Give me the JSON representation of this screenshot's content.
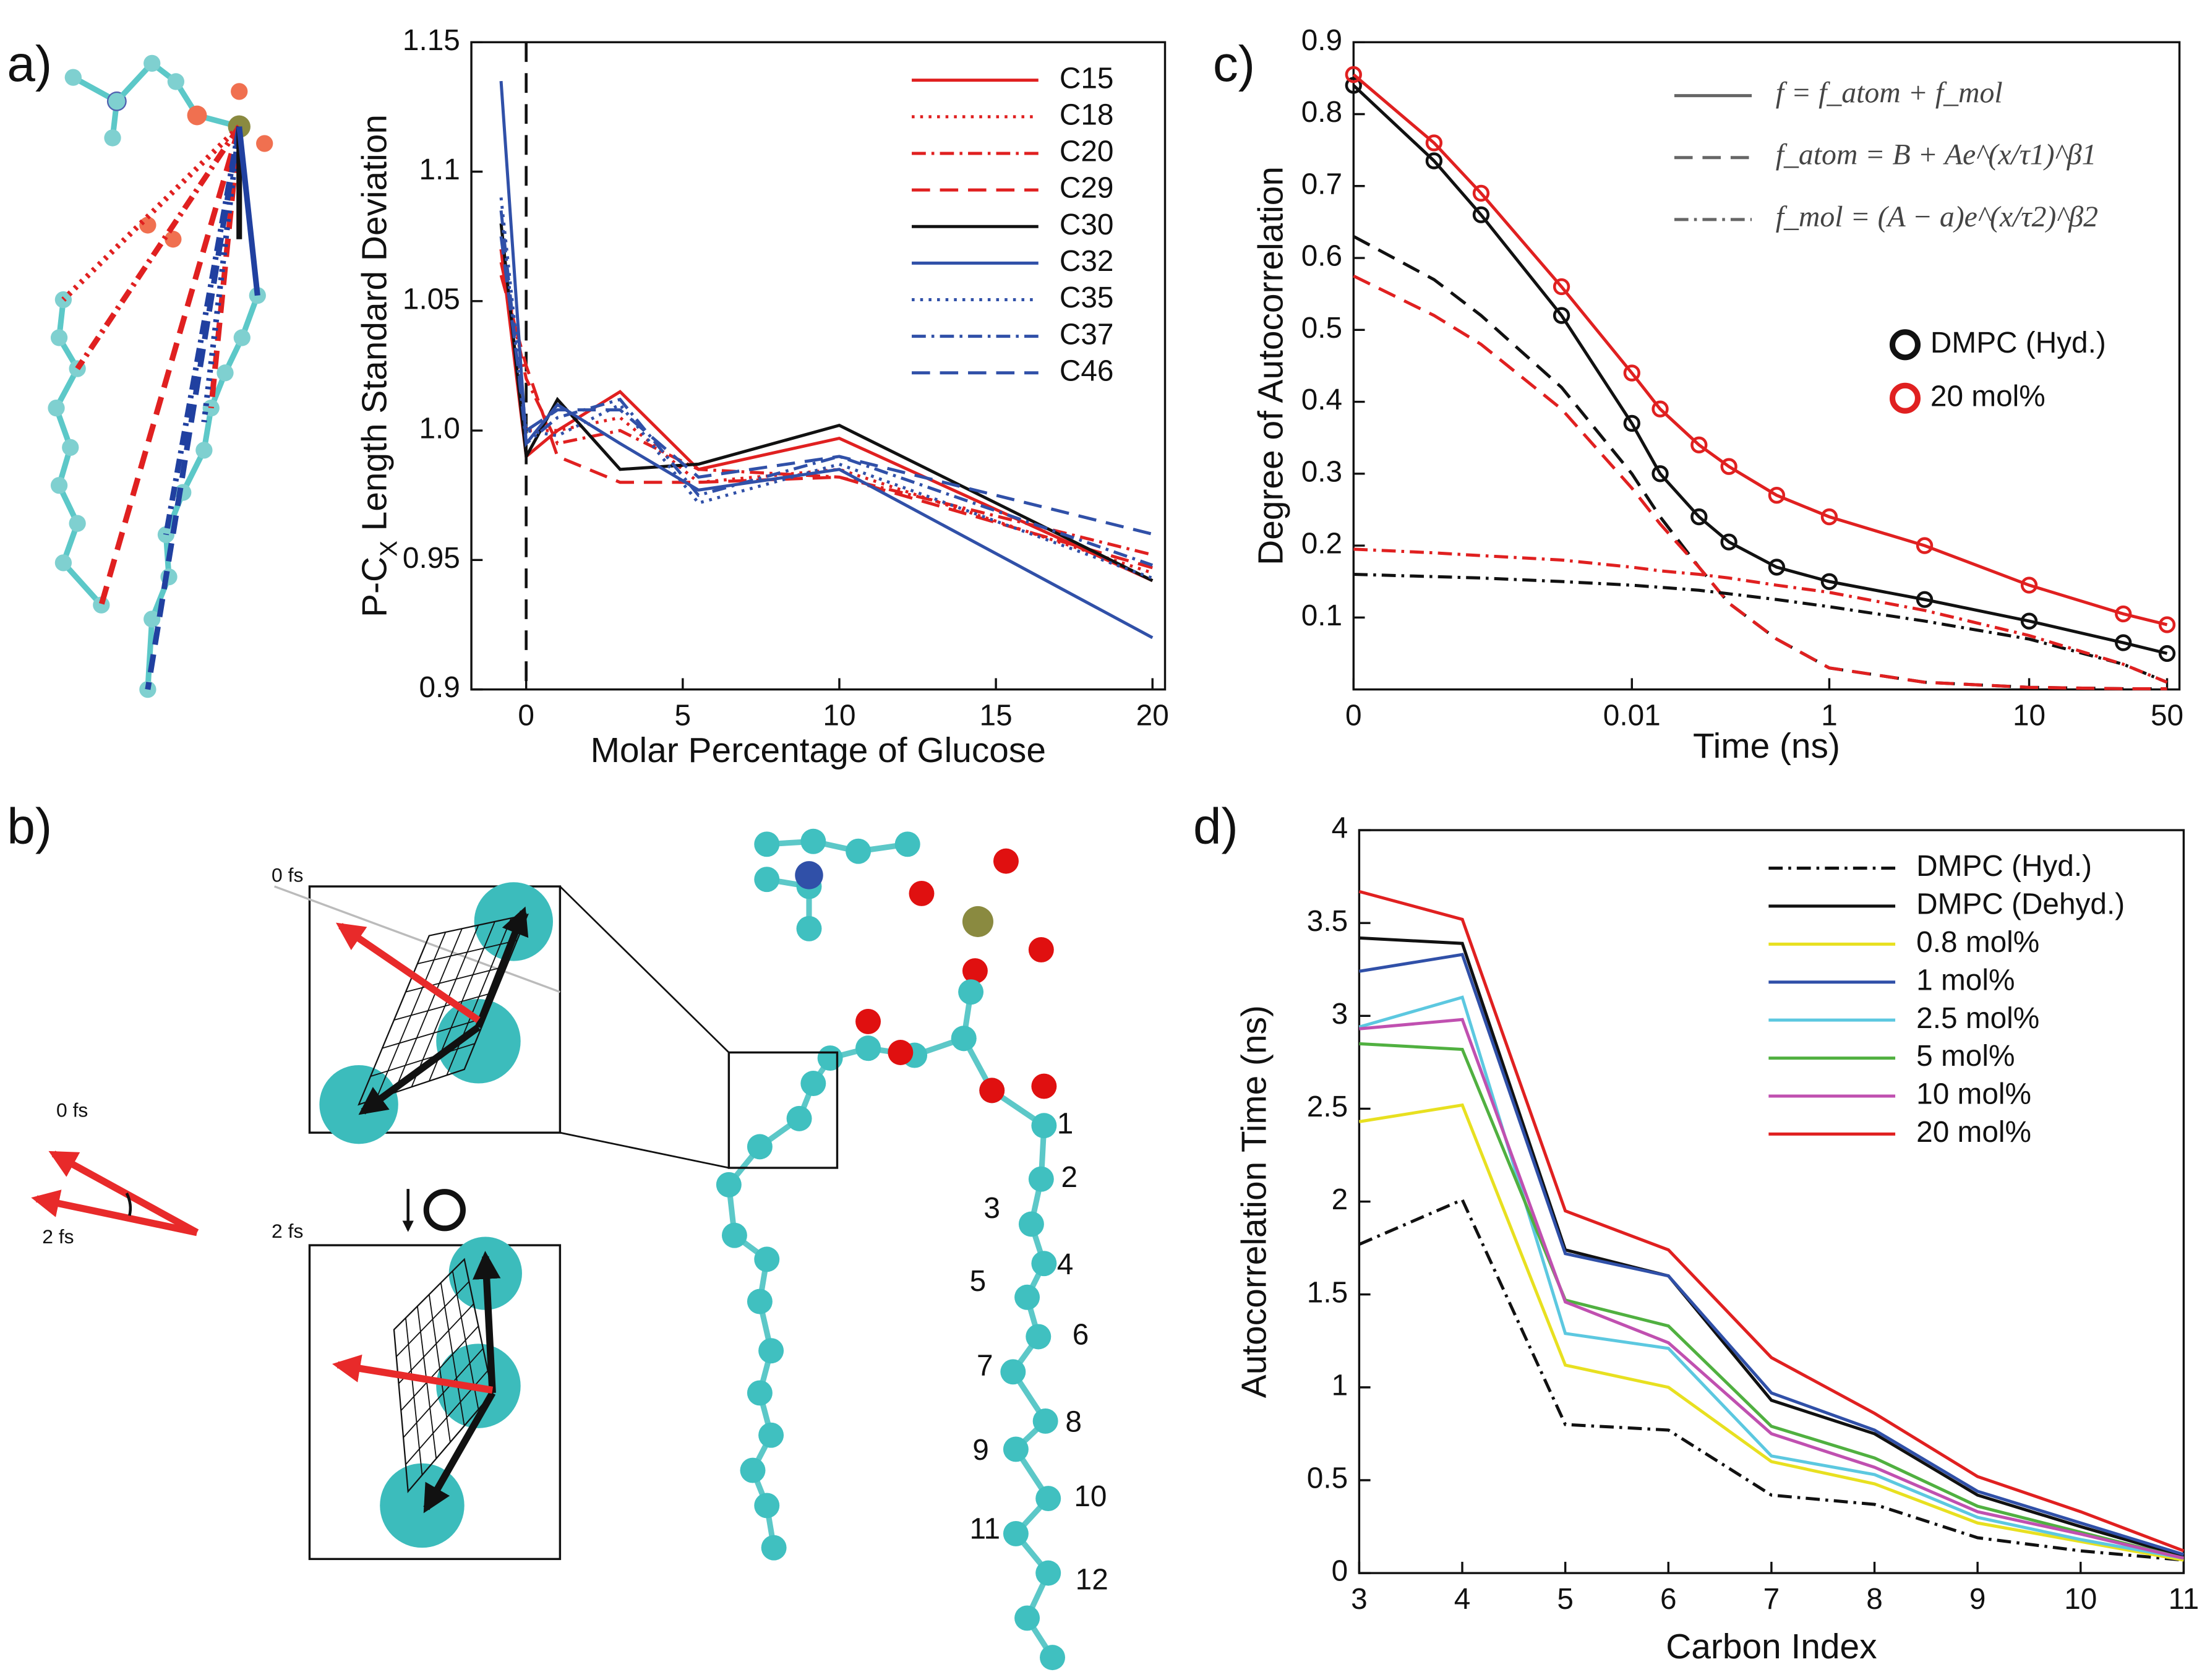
{
  "chart_data": [
    {
      "type": "line",
      "panel": "a",
      "y_label": [
        "P-C",
        "X",
        " Length Standard Deviation"
      ],
      "x_label": "Molar Percentage of Glucose",
      "x": [
        -0.8,
        0,
        1,
        3,
        5.5,
        10,
        20
      ],
      "xlim": [
        -1.75,
        20.4
      ],
      "xticks": [
        0,
        5,
        10,
        15,
        20
      ],
      "ylim": [
        0.9,
        1.15
      ],
      "yticks": [
        0.9,
        0.95,
        {
          "value": 1,
          "label": "1.0"
        },
        1.05,
        1.1,
        1.15
      ],
      "vline": 0,
      "legend": "upper right",
      "series": [
        {
          "name": "C15",
          "color": "#e02020",
          "dash": "solid",
          "values": [
            1.07,
            0.99,
            1.0,
            1.015,
            0.985,
            0.997,
            0.942
          ]
        },
        {
          "name": "C18",
          "color": "#e02020",
          "dash": "dotted",
          "values": [
            1.07,
            1.0,
            1.0,
            1.005,
            0.98,
            0.985,
            0.945
          ]
        },
        {
          "name": "C20",
          "color": "#e02020",
          "dash": "dashdot",
          "values": [
            1.065,
            1.02,
            0.995,
            1.0,
            0.985,
            0.982,
            0.952
          ]
        },
        {
          "name": "C29",
          "color": "#e02020",
          "dash": "dashed",
          "values": [
            1.06,
            1.025,
            0.99,
            0.98,
            0.98,
            0.982,
            0.947
          ]
        },
        {
          "name": "C30",
          "color": "#111111",
          "dash": "solid",
          "values": [
            1.08,
            0.99,
            1.012,
            0.985,
            0.987,
            1.002,
            0.942
          ]
        },
        {
          "name": "C32",
          "color": "#3050a8",
          "dash": "solid",
          "values": [
            1.135,
            0.995,
            1.01,
            0.995,
            0.977,
            0.985,
            0.92
          ]
        },
        {
          "name": "C35",
          "color": "#3050a8",
          "dash": "dotted",
          "values": [
            1.09,
            1.0,
            0.998,
            1.01,
            0.972,
            0.987,
            0.943
          ]
        },
        {
          "name": "C37",
          "color": "#3050a8",
          "dash": "dashdot",
          "values": [
            1.085,
            0.995,
            1.005,
            1.012,
            0.975,
            0.99,
            0.948
          ]
        },
        {
          "name": "C46",
          "color": "#3050a8",
          "dash": "dashed",
          "values": [
            1.075,
            1.0,
            1.008,
            1.008,
            0.982,
            0.99,
            0.96
          ]
        }
      ]
    },
    {
      "type": "line",
      "panel": "c",
      "y_label": [
        "Degree of Autocorrelation"
      ],
      "x_label": "Time (ns)",
      "xscale": "log",
      "x": [
        0,
        0.001,
        0.002,
        0.005,
        0.01,
        0.02,
        0.05,
        0.1,
        0.3,
        1,
        3,
        10,
        30,
        50
      ],
      "xlim": [
        0,
        55
      ],
      "xticks": [
        0,
        0.01,
        1,
        10,
        50
      ],
      "ylim": [
        0,
        0.9
      ],
      "yticks": [
        0.1,
        0.2,
        0.3,
        0.4,
        0.5,
        0.6,
        0.7,
        0.8,
        0.9
      ],
      "legend": "center right",
      "legend_color": "#666666",
      "line_legend": [
        {
          "label": "f = f_atom + f_mol",
          "dash": "solid"
        },
        {
          "label": "f_atom = B + Ae^(x/τ1)^β1",
          "dash": "dashed"
        },
        {
          "label": "f_mol = (A − a)e^(x/τ2)^β2",
          "dash": "dashdot"
        }
      ],
      "series": [
        {
          "name": "DMPC (Hyd.)",
          "color": "#111111",
          "marker": "circle",
          "dash": "solid",
          "values": [
            0.84,
            0.735,
            0.66,
            0.52,
            0.37,
            0.3,
            0.24,
            0.205,
            0.17,
            0.15,
            0.125,
            0.095,
            0.065,
            0.05
          ]
        },
        {
          "name": "20 mol%",
          "color": "#e02020",
          "marker": "circle",
          "dash": "solid",
          "values": [
            0.855,
            0.76,
            0.69,
            0.56,
            0.44,
            0.39,
            0.34,
            0.31,
            0.27,
            0.24,
            0.2,
            0.145,
            0.105,
            0.09
          ]
        }
      ],
      "fits": [
        {
          "color": "#111111",
          "dash": "dashed",
          "values": [
            0.63,
            0.57,
            0.52,
            0.42,
            0.3,
            0.24,
            0.17,
            0.12,
            0.07,
            0.03,
            0.01,
            0.003,
            0.001,
            0.001
          ]
        },
        {
          "color": "#e02020",
          "dash": "dashed",
          "values": [
            0.575,
            0.52,
            0.48,
            0.39,
            0.28,
            0.23,
            0.17,
            0.12,
            0.07,
            0.03,
            0.01,
            0.003,
            0.001,
            0.001
          ]
        },
        {
          "color": "#111111",
          "dash": "dashdot",
          "values": [
            0.16,
            0.157,
            0.155,
            0.15,
            0.145,
            0.142,
            0.138,
            0.133,
            0.125,
            0.115,
            0.095,
            0.07,
            0.035,
            0.01
          ]
        },
        {
          "color": "#e02020",
          "dash": "dashdot",
          "values": [
            0.195,
            0.19,
            0.186,
            0.18,
            0.17,
            0.165,
            0.16,
            0.155,
            0.145,
            0.135,
            0.11,
            0.075,
            0.035,
            0.01
          ]
        }
      ]
    },
    {
      "type": "line",
      "panel": "d",
      "y_label": [
        "Autocorrelation Time (ns)"
      ],
      "x_label": "Carbon Index",
      "x": [
        3,
        4,
        5,
        6,
        7,
        8,
        9,
        10,
        11
      ],
      "xlim": [
        3,
        11
      ],
      "xticks": [
        3,
        4,
        5,
        6,
        7,
        8,
        9,
        10,
        11
      ],
      "ylim": [
        0,
        4
      ],
      "yticks": [
        0,
        0.5,
        1,
        1.5,
        2,
        2.5,
        3,
        3.5,
        4
      ],
      "legend": "upper right",
      "series": [
        {
          "name": "DMPC (Hyd.)",
          "color": "#111111",
          "dash": "dashdot",
          "values": [
            1.77,
            2.01,
            0.8,
            0.77,
            0.42,
            0.37,
            0.19,
            0.12,
            0.07
          ]
        },
        {
          "name": "DMPC (Dehyd.)",
          "color": "#111111",
          "dash": "solid",
          "values": [
            3.42,
            3.39,
            1.74,
            1.6,
            0.93,
            0.75,
            0.42,
            0.25,
            0.09
          ]
        },
        {
          "name": "0.8 mol%",
          "color": "#e8e020",
          "dash": "solid",
          "values": [
            2.43,
            2.52,
            1.12,
            1.0,
            0.6,
            0.48,
            0.27,
            0.17,
            0.07
          ]
        },
        {
          "name": "1 mol%",
          "color": "#3050a8",
          "dash": "solid",
          "values": [
            3.24,
            3.33,
            1.72,
            1.6,
            0.97,
            0.77,
            0.44,
            0.27,
            0.1
          ]
        },
        {
          "name": "2.5 mol%",
          "color": "#5cc8e0",
          "dash": "solid",
          "values": [
            2.94,
            3.1,
            1.29,
            1.21,
            0.63,
            0.53,
            0.3,
            0.18,
            0.08
          ]
        },
        {
          "name": "5 mol%",
          "color": "#50b040",
          "dash": "solid",
          "values": [
            2.85,
            2.82,
            1.47,
            1.33,
            0.79,
            0.62,
            0.36,
            0.22,
            0.08
          ]
        },
        {
          "name": "10 mol%",
          "color": "#c050b0",
          "dash": "solid",
          "values": [
            2.93,
            2.98,
            1.46,
            1.24,
            0.75,
            0.57,
            0.33,
            0.21,
            0.08
          ]
        },
        {
          "name": "20 mol%",
          "color": "#e02020",
          "dash": "solid",
          "values": [
            3.67,
            3.52,
            1.95,
            1.74,
            1.16,
            0.86,
            0.52,
            0.33,
            0.12
          ]
        }
      ]
    }
  ],
  "diagram": {
    "panel_labels": [
      "a)",
      "b)",
      "c)",
      "d)"
    ],
    "time_labels": [
      "0 fs",
      "2 fs",
      "0 fs",
      "2 fs"
    ],
    "atom_numbers": [
      "1",
      "2",
      "3",
      "4",
      "5",
      "6",
      "7",
      "8",
      "9",
      "10",
      "11",
      "12"
    ]
  }
}
